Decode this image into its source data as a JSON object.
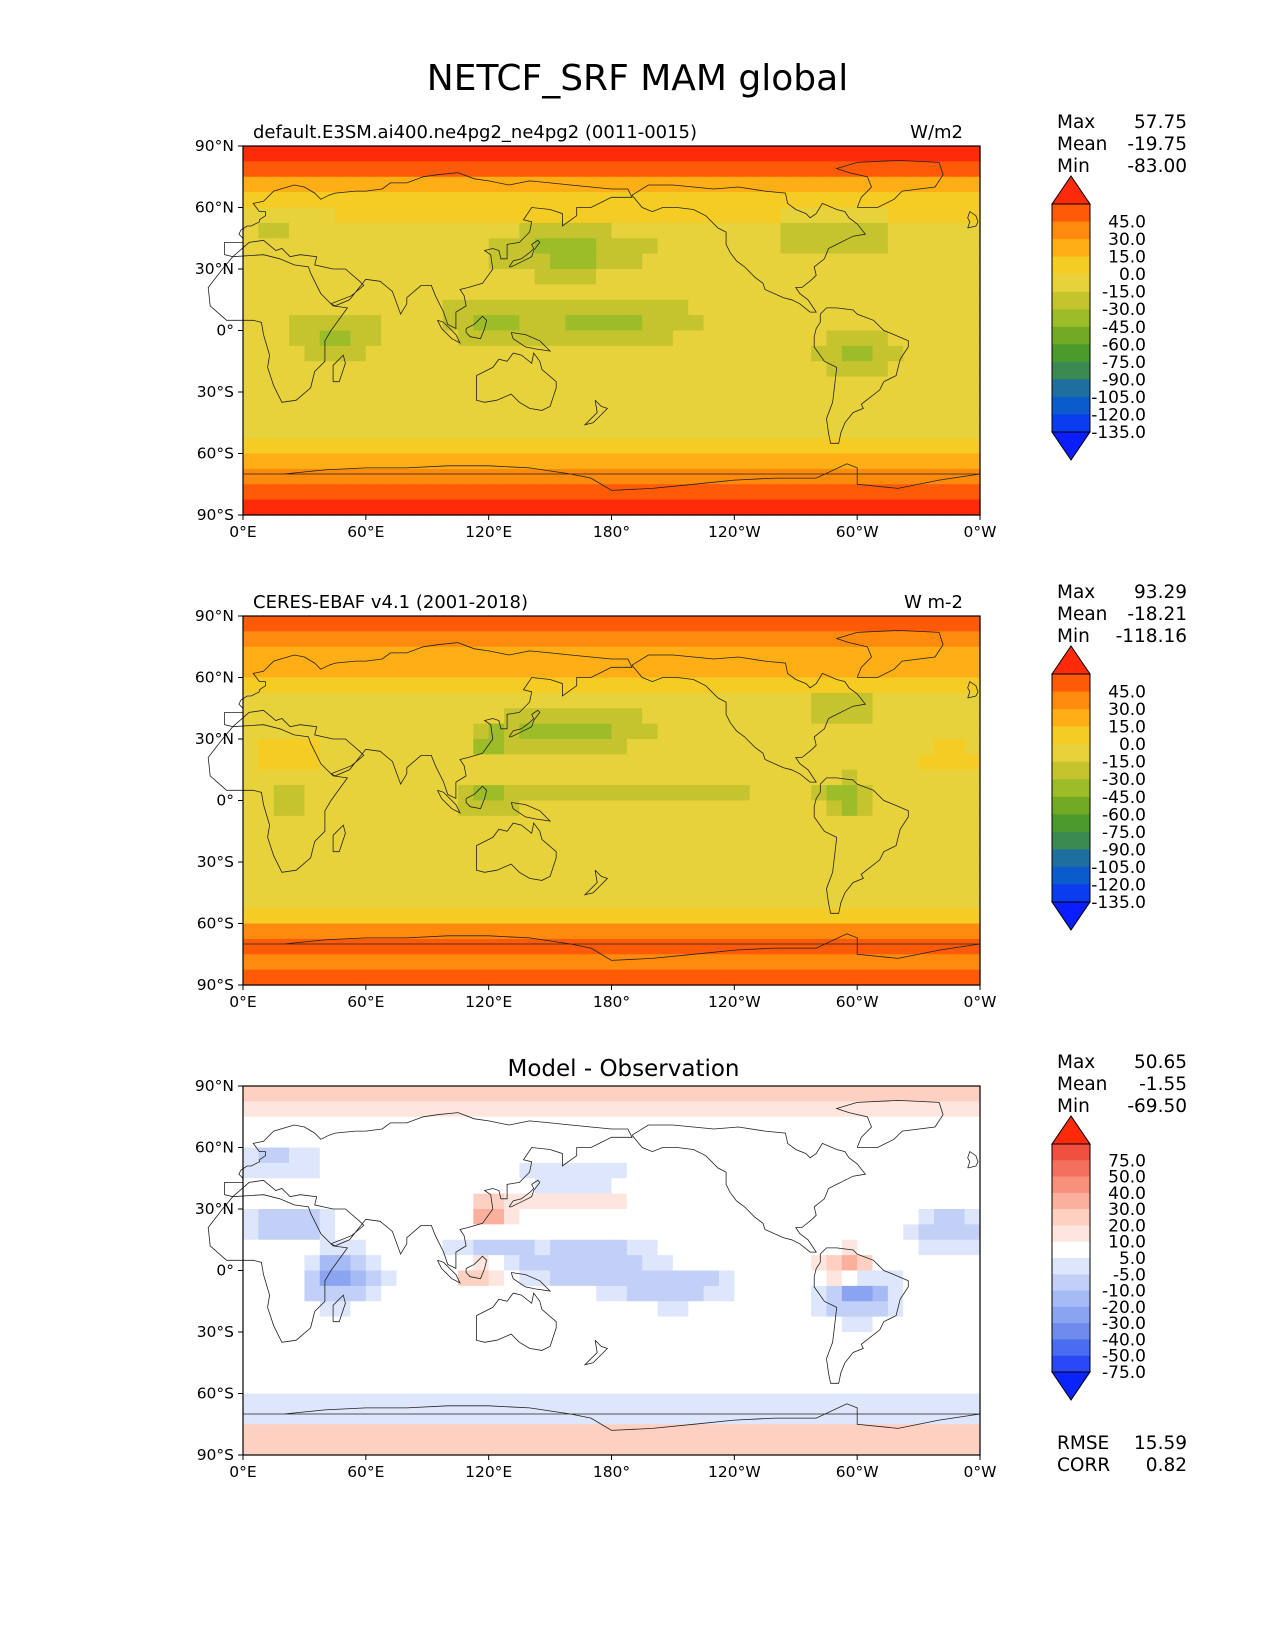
{
  "figure": {
    "title": "NETCF_SRF MAM global"
  },
  "axes": {
    "lat_ticks": [
      "90°N",
      "60°N",
      "30°N",
      "0°",
      "30°S",
      "60°S",
      "90°S"
    ],
    "lon_ticks": [
      "0°E",
      "60°E",
      "120°E",
      "180°",
      "120°W",
      "60°W",
      "0°W"
    ]
  },
  "panels": [
    {
      "id": "model",
      "left_title": "default.E3SM.ai400.ne4pg2_ne4pg2 (0011-0015)",
      "center_title": "",
      "units": "W/m2",
      "stats": [
        {
          "label": "Max",
          "value": "57.75"
        },
        {
          "label": "Mean",
          "value": "-19.75"
        },
        {
          "label": "Min",
          "value": "-83.00"
        }
      ],
      "colorbar": {
        "labels": [
          "45.0",
          "30.0",
          "15.0",
          "0.0",
          "-15.0",
          "-30.0",
          "-45.0",
          "-60.0",
          "-75.0",
          "-90.0",
          "-105.0",
          "-120.0",
          "-135.0"
        ],
        "colors": [
          "#ff2a0a",
          "#ff5a08",
          "#ff8a0c",
          "#ffae16",
          "#f4cc24",
          "#e8d23c",
          "#c6c42e",
          "#9cbc28",
          "#72aa24",
          "#4c9a2c",
          "#3a8a52",
          "#1e6ea0",
          "#0a5ccc",
          "#0a3cf0",
          "#0a1eff"
        ]
      }
    },
    {
      "id": "obs",
      "left_title": "CERES-EBAF v4.1 (2001-2018)",
      "center_title": "",
      "units": "W m-2",
      "stats": [
        {
          "label": "Max",
          "value": "93.29"
        },
        {
          "label": "Mean",
          "value": "-18.21"
        },
        {
          "label": "Min",
          "value": "-118.16"
        }
      ],
      "colorbar": {
        "labels": [
          "45.0",
          "30.0",
          "15.0",
          "0.0",
          "-15.0",
          "-30.0",
          "-45.0",
          "-60.0",
          "-75.0",
          "-90.0",
          "-105.0",
          "-120.0",
          "-135.0"
        ],
        "colors": [
          "#ff2a0a",
          "#ff5a08",
          "#ff8a0c",
          "#ffae16",
          "#f4cc24",
          "#e8d23c",
          "#c6c42e",
          "#9cbc28",
          "#72aa24",
          "#4c9a2c",
          "#3a8a52",
          "#1e6ea0",
          "#0a5ccc",
          "#0a3cf0",
          "#0a1eff"
        ]
      }
    },
    {
      "id": "diff",
      "left_title": "",
      "center_title": "Model - Observation",
      "units": "",
      "stats": [
        {
          "label": "Max",
          "value": "50.65"
        },
        {
          "label": "Mean",
          "value": "-1.55"
        },
        {
          "label": "Min",
          "value": "-69.50"
        }
      ],
      "colorbar": {
        "labels": [
          "75.0",
          "50.0",
          "40.0",
          "30.0",
          "20.0",
          "10.0",
          "5.0",
          "-5.0",
          "-10.0",
          "-20.0",
          "-30.0",
          "-40.0",
          "-50.0",
          "-75.0"
        ],
        "colors": [
          "#ff2a0a",
          "#f05040",
          "#f4705e",
          "#f8907c",
          "#fbb09e",
          "#fdd0c2",
          "#fee6de",
          "#ffffff",
          "#dee6fb",
          "#c2d0f8",
          "#a6baf6",
          "#8aa4f2",
          "#6e8cee",
          "#4a6cf0",
          "#2a48f6",
          "#0a24ff"
        ]
      },
      "extra_stats": [
        {
          "label": "RMSE",
          "value": "15.59"
        },
        {
          "label": "CORR",
          "value": "0.82"
        }
      ]
    }
  ]
}
